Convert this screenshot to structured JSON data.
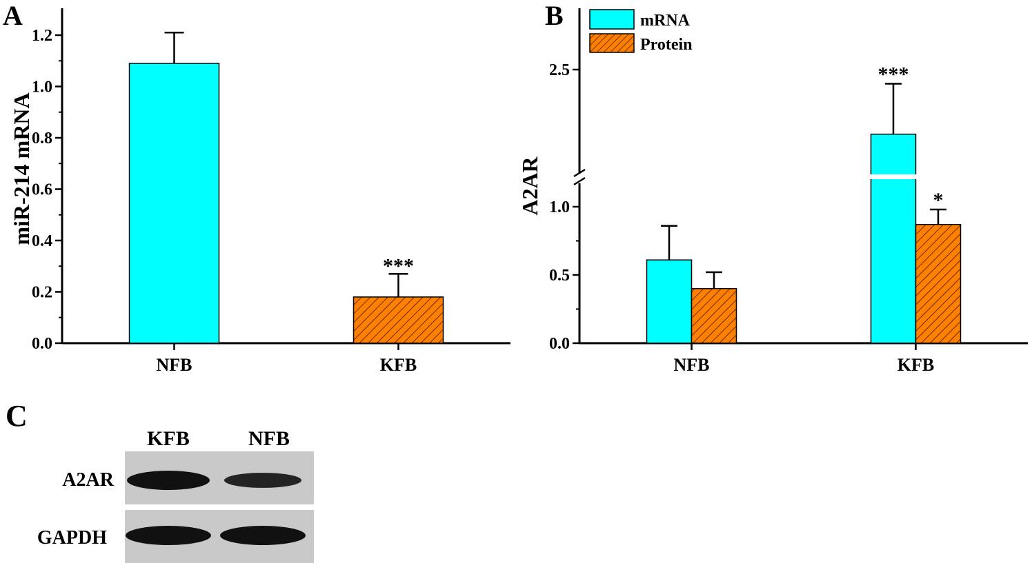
{
  "panels": {
    "a": {
      "label": "A"
    },
    "b": {
      "label": "B"
    },
    "c": {
      "label": "C"
    }
  },
  "colors": {
    "mrna": "#00FFFF",
    "protein": "#FF8000",
    "hatch": "#3a1a00",
    "blot_bg": "#c9c9c9",
    "band": "#111111"
  },
  "chart_data": [
    {
      "type": "bar",
      "panel": "A",
      "categories": [
        "NFB",
        "KFB"
      ],
      "values": [
        1.09,
        0.18
      ],
      "errors": [
        0.12,
        0.09
      ],
      "significance": [
        "",
        "***"
      ],
      "fills": [
        "solid",
        "hatched"
      ],
      "ylabel": "miR-214 mRNA",
      "xlabel": "",
      "ylim": [
        0,
        1.2
      ],
      "yticks": [
        "0.0",
        "0.2",
        "0.4",
        "0.6",
        "0.8",
        "1.0",
        "1.2"
      ]
    },
    {
      "type": "bar",
      "panel": "B",
      "categories": [
        "NFB",
        "KFB"
      ],
      "series": [
        {
          "name": "mRNA",
          "values": [
            0.61,
            2.18
          ],
          "errors": [
            0.25,
            0.25
          ],
          "significance": [
            "",
            "***"
          ],
          "fill": "solid"
        },
        {
          "name": "Protein",
          "values": [
            0.4,
            0.87
          ],
          "errors": [
            0.12,
            0.11
          ],
          "significance": [
            "",
            "*"
          ],
          "fill": "hatched"
        }
      ],
      "ylabel": "A2AR",
      "xlabel": "",
      "ylim": [
        0,
        2.9
      ],
      "axis_break": [
        1.1,
        1.85
      ],
      "yticks": [
        "0.0",
        "0.5",
        "1.0",
        "2.5"
      ],
      "legend_position": "top-left"
    }
  ],
  "blot": {
    "lanes": [
      "KFB",
      "NFB"
    ],
    "rows": [
      {
        "name": "A2AR",
        "intensity": [
          1.0,
          0.78
        ]
      },
      {
        "name": "GAPDH",
        "intensity": [
          1.0,
          1.0
        ]
      }
    ]
  }
}
